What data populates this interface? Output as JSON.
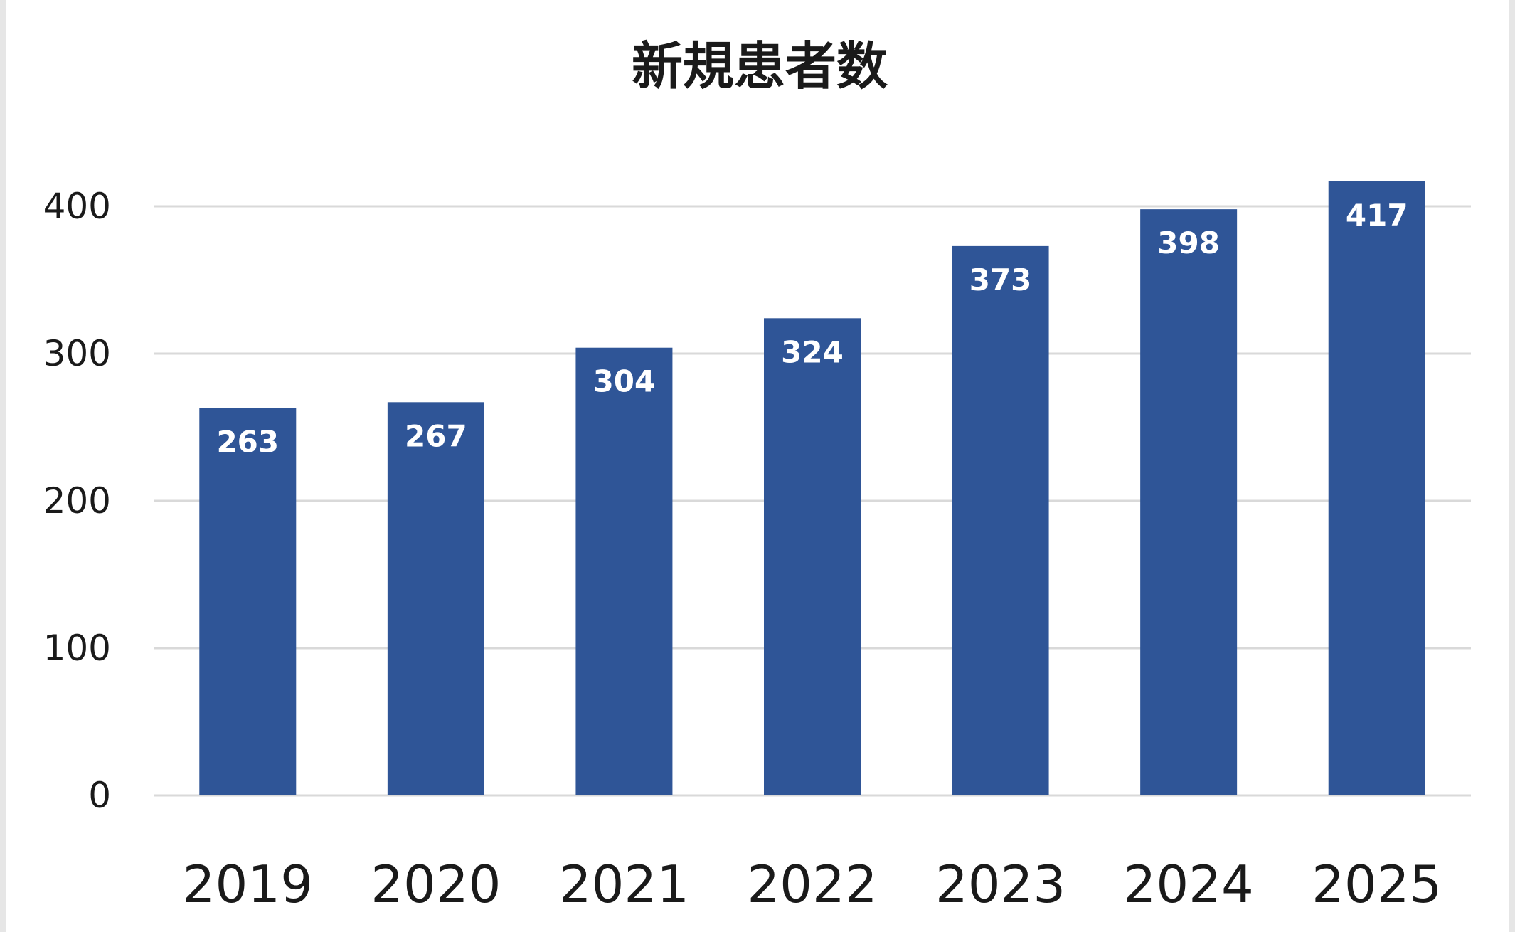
{
  "chart_data": {
    "type": "bar",
    "title": "新規患者数",
    "categories": [
      "2019",
      "2020",
      "2021",
      "2022",
      "2023",
      "2024",
      "2025"
    ],
    "values": [
      263,
      267,
      304,
      324,
      373,
      398,
      417
    ],
    "ylim": [
      0,
      400
    ],
    "y_ticks": [
      0,
      100,
      200,
      300,
      400
    ],
    "grid": true,
    "legend": "none",
    "bar_color": "#2f5597",
    "label_color": "#ffffff",
    "gridline_color": "#d9d9d9"
  }
}
